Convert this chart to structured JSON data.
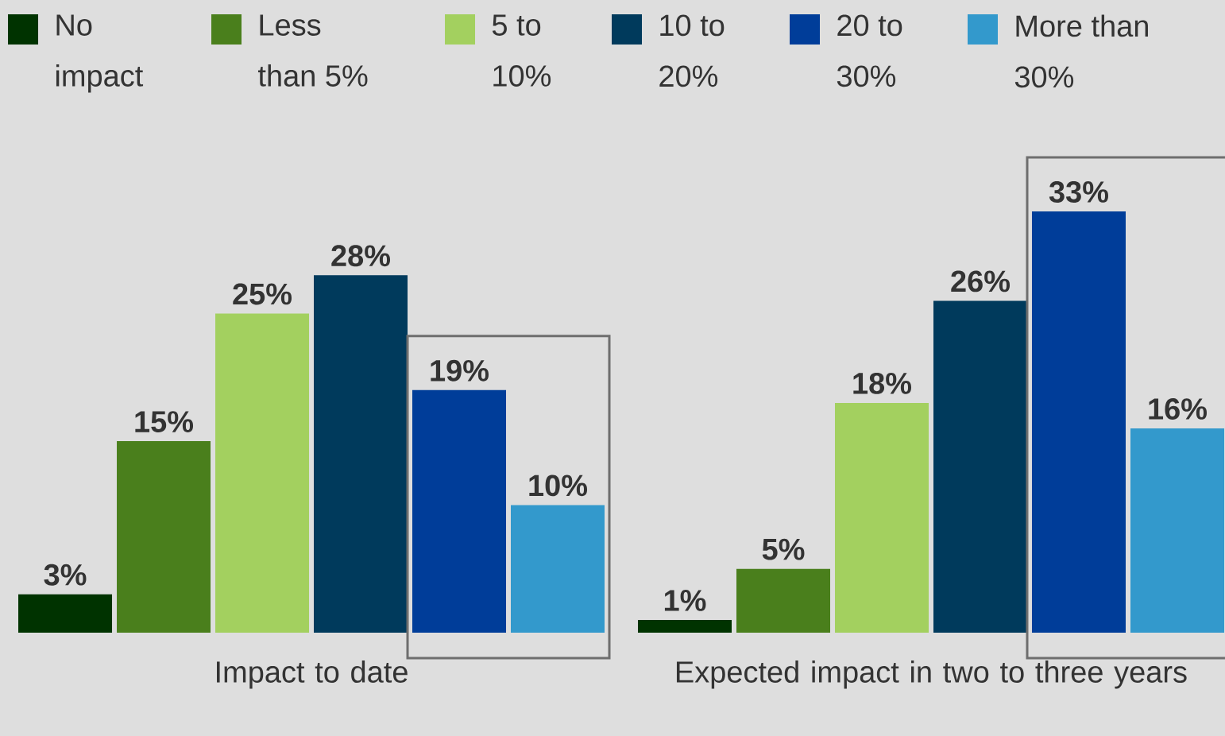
{
  "chart_data": [
    {
      "type": "other",
      "categories": [
        "No impact",
        "Less than 5%",
        "5 to 10%",
        "10 to 20%",
        "20 to 30%",
        "More than 30%"
      ],
      "colors": [
        "#003300",
        "#4a7f1c",
        "#a3d05f",
        "#003a5c",
        "#003d99",
        "#3399cc"
      ]
    },
    {
      "type": "bar",
      "xlabel": "Impact to date",
      "categories": [
        null,
        null,
        null,
        null,
        null,
        null
      ],
      "values": [
        3,
        15,
        25,
        28,
        19,
        10
      ],
      "value_labels": [
        "3%",
        "15%",
        "25%",
        "28%",
        "19%",
        "10%"
      ],
      "colors": [
        "#003300",
        "#4a7f1c",
        "#a3d05f",
        "#003a5c",
        "#003d99",
        "#3399cc"
      ]
    },
    {
      "type": "bar",
      "xlabel": "Expected impact in two to three years",
      "categories": [
        null,
        null,
        null,
        null,
        null,
        null
      ],
      "values": [
        1,
        5,
        18,
        26,
        33,
        16
      ],
      "value_labels": [
        "1%",
        "5%",
        "18%",
        "26%",
        "33%",
        "16%"
      ],
      "colors": [
        "#003300",
        "#4a7f1c",
        "#a3d05f",
        "#003a5c",
        "#003d99",
        "#3399cc"
      ]
    }
  ]
}
